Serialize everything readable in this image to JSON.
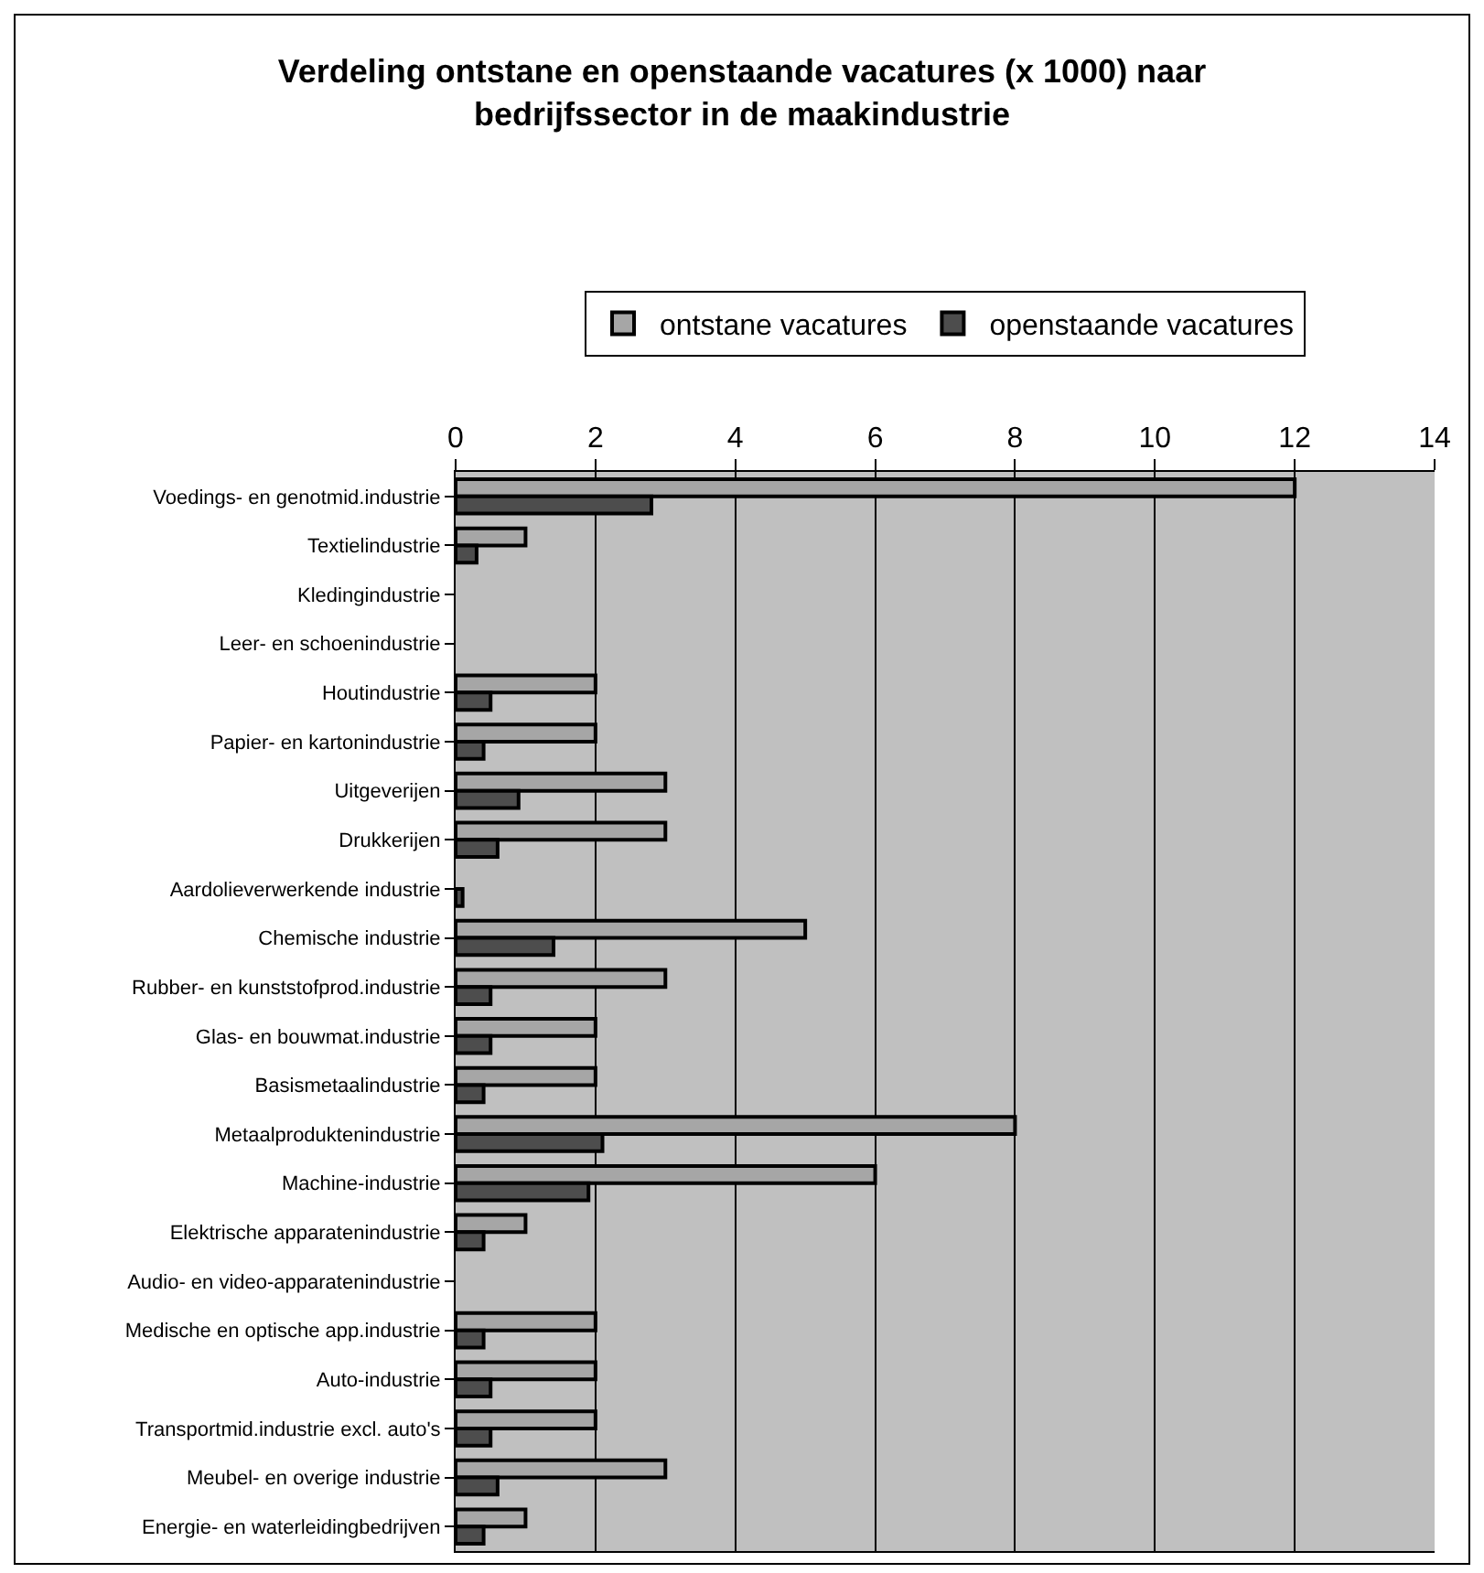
{
  "chart_data": {
    "type": "bar",
    "orientation": "horizontal",
    "title": "Verdeling ontstane en openstaande vacatures (x 1000) naar bedrijfssector in de maakindustrie",
    "categories": [
      "Voedings- en genotmid.industrie",
      "Textielindustrie",
      "Kledingindustrie",
      "Leer- en schoenindustrie",
      "Houtindustrie",
      "Papier- en kartonindustrie",
      "Uitgeverijen",
      "Drukkerijen",
      "Aardolieverwerkende industrie",
      "Chemische industrie",
      "Rubber- en kunststofprod.industrie",
      "Glas- en bouwmat.industrie",
      "Basismetaalindustrie",
      "Metaalproduktenindustrie",
      "Machine-industrie",
      "Elektrische apparatenindustrie",
      "Audio- en video-apparatenindustrie",
      "Medische en optische app.industrie",
      "Auto-industrie",
      "Transportmid.industrie excl. auto's",
      "Meubel- en overige industrie",
      "Energie- en waterleidingbedrijven"
    ],
    "series": [
      {
        "name": "ontstane vacatures",
        "color": "#a6a6a6",
        "values": [
          12,
          1,
          0,
          0,
          2,
          2,
          3,
          3,
          0,
          5,
          3,
          2,
          2,
          8,
          6,
          1,
          0,
          2,
          2,
          2,
          3,
          1
        ]
      },
      {
        "name": "openstaande vacatures",
        "color": "#4d4d4d",
        "values": [
          2.8,
          0.3,
          0,
          0,
          0.5,
          0.4,
          0.9,
          0.6,
          0.1,
          1.4,
          0.5,
          0.5,
          0.4,
          2.1,
          1.9,
          0.4,
          0,
          0.4,
          0.5,
          0.5,
          0.6,
          0.4
        ]
      }
    ],
    "xlim": [
      0,
      14
    ],
    "xticks": [
      0,
      2,
      4,
      6,
      8,
      10,
      12,
      14
    ],
    "grid": "x",
    "legend": "top"
  }
}
